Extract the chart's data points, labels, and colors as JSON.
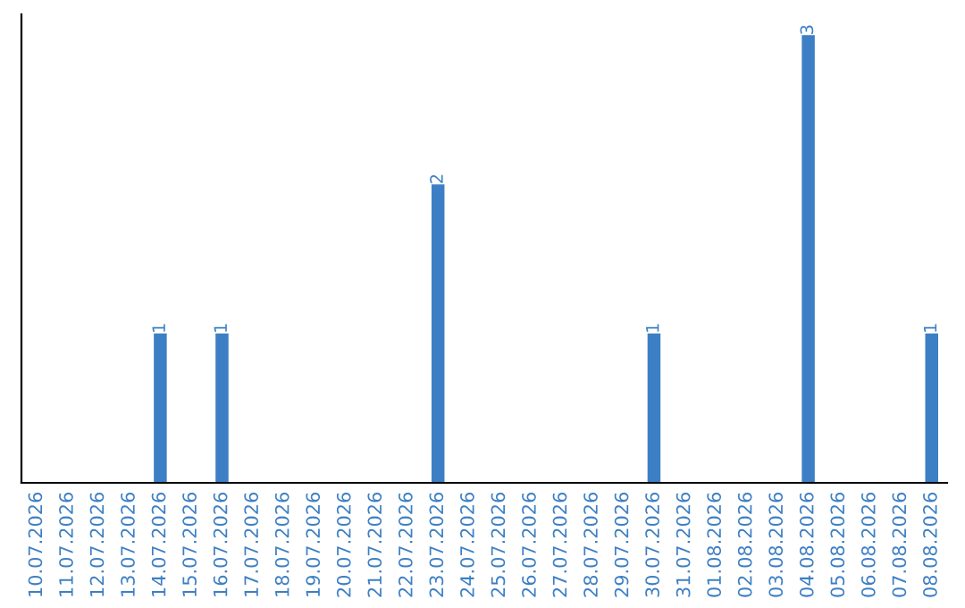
{
  "chart_data": {
    "type": "bar",
    "categories": [
      "10.07.2026",
      "11.07.2026",
      "12.07.2026",
      "13.07.2026",
      "14.07.2026",
      "15.07.2026",
      "16.07.2026",
      "17.07.2026",
      "18.07.2026",
      "19.07.2026",
      "20.07.2026",
      "21.07.2026",
      "22.07.2026",
      "23.07.2026",
      "24.07.2026",
      "25.07.2026",
      "26.07.2026",
      "27.07.2026",
      "28.07.2026",
      "29.07.2026",
      "30.07.2026",
      "31.07.2026",
      "01.08.2026",
      "02.08.2026",
      "03.08.2026",
      "04.08.2026",
      "05.08.2026",
      "06.08.2026",
      "07.08.2026",
      "08.08.2026"
    ],
    "values": [
      0,
      0,
      0,
      0,
      1,
      0,
      1,
      0,
      0,
      0,
      0,
      0,
      0,
      2,
      0,
      0,
      0,
      0,
      0,
      0,
      1,
      0,
      0,
      0,
      0,
      3,
      0,
      0,
      0,
      1
    ],
    "value_labels": [
      null,
      null,
      null,
      null,
      "1",
      null,
      "1",
      null,
      null,
      null,
      null,
      null,
      null,
      "2",
      null,
      null,
      null,
      null,
      null,
      null,
      "1",
      null,
      null,
      null,
      null,
      "3",
      null,
      null,
      null,
      "1"
    ],
    "color": "#3d7fc4",
    "ylim": [
      0,
      3.14
    ],
    "tick_labels": "x",
    "grid": false,
    "legend": false
  }
}
